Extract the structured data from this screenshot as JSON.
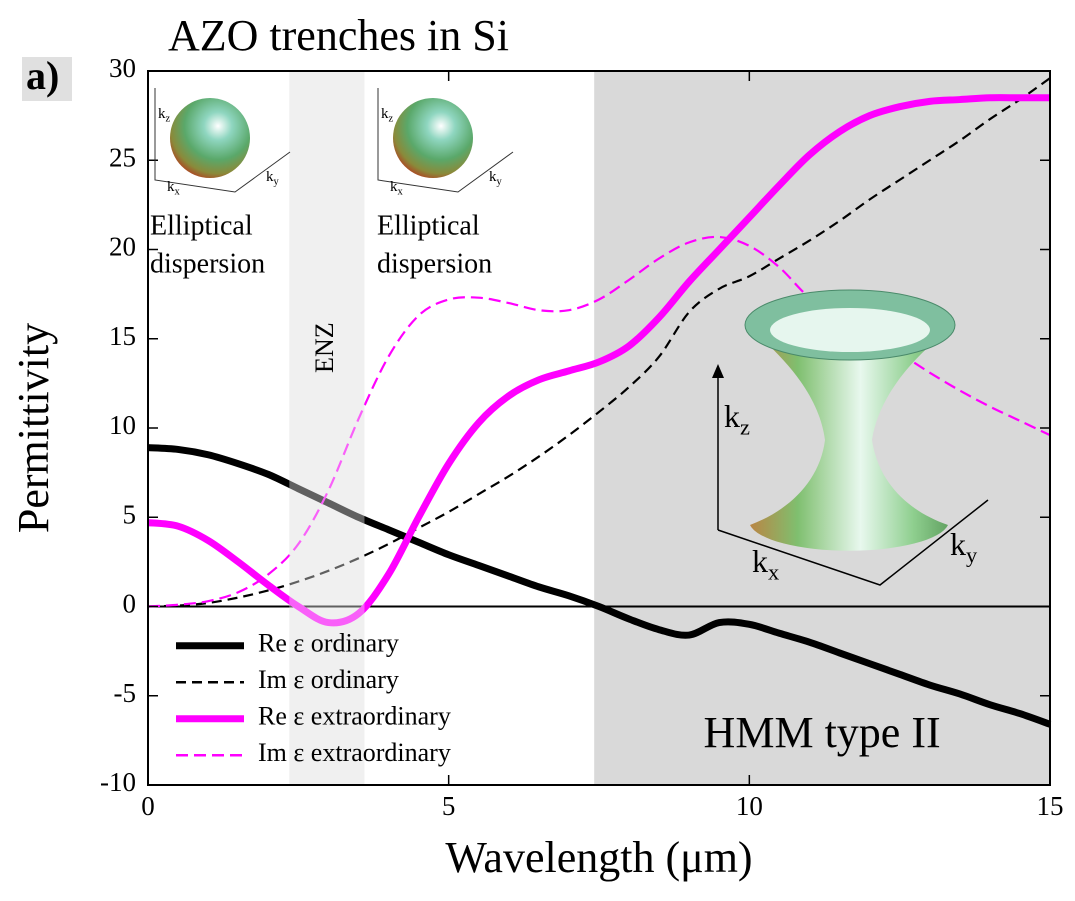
{
  "chart_data": {
    "type": "line",
    "title": "AZO trenches in Si",
    "panel_label": "a)",
    "x_label": "Wavelength (μm)",
    "y_label": "Permittivity",
    "x": [
      0,
      0.5,
      1,
      1.5,
      2,
      2.5,
      3,
      3.5,
      4,
      4.5,
      5,
      5.5,
      6,
      6.5,
      7,
      7.5,
      8,
      8.5,
      9,
      9.5,
      10,
      10.5,
      11,
      11.5,
      12,
      12.5,
      13,
      13.5,
      14,
      14.5,
      15
    ],
    "series": [
      {
        "name": "Re ε ordinary",
        "color": "#000000",
        "style": "solid",
        "values": [
          8.9,
          8.8,
          8.5,
          8.0,
          7.4,
          6.6,
          5.8,
          5.0,
          4.3,
          3.6,
          2.9,
          2.3,
          1.7,
          1.1,
          0.6,
          0,
          -0.7,
          -1.3,
          -1.6,
          -0.9,
          -1.0,
          -1.5,
          -2.0,
          -2.6,
          -3.2,
          -3.8,
          -4.4,
          -4.9,
          -5.5,
          -6.0,
          -6.6
        ]
      },
      {
        "name": "Im ε ordinary",
        "color": "#000000",
        "style": "dashed",
        "values": [
          0,
          0.05,
          0.2,
          0.5,
          0.9,
          1.4,
          2.0,
          2.7,
          3.5,
          4.4,
          5.3,
          6.3,
          7.3,
          8.4,
          9.6,
          10.9,
          12.3,
          14.0,
          16.5,
          17.8,
          18.5,
          19.5,
          20.5,
          21.6,
          22.8,
          23.9,
          25.0,
          26.1,
          27.3,
          28.4,
          29.6
        ]
      },
      {
        "name": "Re ε extraordinary",
        "color": "#ff00ff",
        "style": "solid",
        "values": [
          4.7,
          4.5,
          3.7,
          2.5,
          1.2,
          0,
          -0.9,
          -0.4,
          1.8,
          5.0,
          8.0,
          10.3,
          11.8,
          12.7,
          13.2,
          13.7,
          14.6,
          16.2,
          18.2,
          20.0,
          21.8,
          23.6,
          25.3,
          26.6,
          27.5,
          28.0,
          28.3,
          28.4,
          28.5,
          28.5,
          28.5
        ]
      },
      {
        "name": "Im ε extraordinary",
        "color": "#ff00ff",
        "style": "dashed",
        "values": [
          0,
          0.1,
          0.3,
          0.8,
          1.8,
          3.5,
          6.5,
          10.5,
          14.0,
          16.3,
          17.2,
          17.3,
          17.0,
          16.6,
          16.6,
          17.2,
          18.3,
          19.5,
          20.4,
          20.7,
          20.2,
          19.0,
          17.3,
          16.3,
          15.3,
          14.2,
          13.1,
          12.1,
          11.2,
          10.4,
          9.6
        ]
      }
    ],
    "xlim": [
      0,
      15
    ],
    "xticks": [
      0,
      5,
      10,
      15
    ],
    "ylim": [
      -10,
      30
    ],
    "yticks": [
      -10,
      -5,
      0,
      5,
      10,
      15,
      20,
      25,
      30
    ],
    "legend": "lower left",
    "regions": [
      {
        "label": "ENZ",
        "range": [
          2.35,
          3.6
        ],
        "color": "#f0f0f0"
      },
      {
        "label": "HMM type II",
        "range": [
          7.42,
          15
        ],
        "color": "#d9d9d9"
      }
    ],
    "annotations": [
      {
        "lines": [
          "Elliptical",
          "dispersion"
        ]
      },
      {
        "lines": [
          "Elliptical",
          "dispersion"
        ]
      }
    ],
    "inset_axes": [
      [
        {
          "base": "k",
          "sub": "z"
        },
        {
          "base": "k",
          "sub": "x"
        },
        {
          "base": "k",
          "sub": "y"
        }
      ],
      [
        {
          "base": "k",
          "sub": "z"
        },
        {
          "base": "k",
          "sub": "x"
        },
        {
          "base": "k",
          "sub": "y"
        }
      ],
      [
        {
          "base": "k",
          "sub": "z"
        },
        {
          "base": "k",
          "sub": "x"
        },
        {
          "base": "k",
          "sub": "y"
        }
      ]
    ]
  }
}
